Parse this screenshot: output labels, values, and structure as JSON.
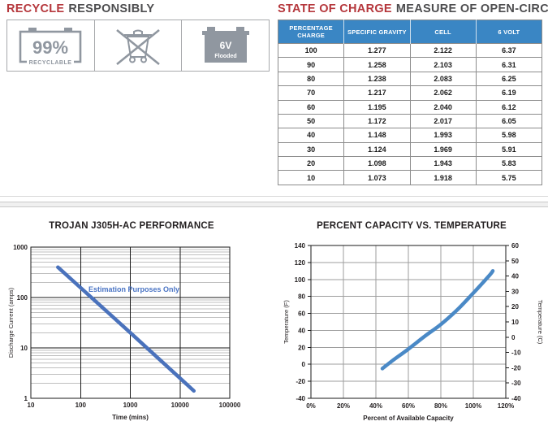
{
  "colors": {
    "accent_red": "#b5373c",
    "heading_dark": "#4d4d4f",
    "table_header_bg": "#3a86c4",
    "icon_gray": "#9097a0",
    "annotation_blue": "#4a74c4",
    "grid_gray": "#9d9d9d",
    "minor_grid_gray": "#bfbfbf",
    "frame_black": "#1a1a1a"
  },
  "recycle": {
    "heading_accent": "RECYCLE",
    "heading_rest": "RESPONSIBLY",
    "badges": {
      "recyclable_value": "99%",
      "recyclable_label": "RECYCLABLE",
      "battery_value": "6V",
      "battery_label": "Flooded"
    }
  },
  "state_of_charge": {
    "heading_accent": "STATE OF CHARGE",
    "heading_rest": "MEASURE OF OPEN-CIRCUIT VOLTAGE",
    "table": {
      "headers": [
        "PERCENTAGE CHARGE",
        "SPECIFIC GRAVITY",
        "CELL",
        "6 VOLT"
      ],
      "rows": [
        [
          "100",
          "1.277",
          "2.122",
          "6.37"
        ],
        [
          "90",
          "1.258",
          "2.103",
          "6.31"
        ],
        [
          "80",
          "1.238",
          "2.083",
          "6.25"
        ],
        [
          "70",
          "1.217",
          "2.062",
          "6.19"
        ],
        [
          "60",
          "1.195",
          "2.040",
          "6.12"
        ],
        [
          "50",
          "1.172",
          "2.017",
          "6.05"
        ],
        [
          "40",
          "1.148",
          "1.993",
          "5.98"
        ],
        [
          "30",
          "1.124",
          "1.969",
          "5.91"
        ],
        [
          "20",
          "1.098",
          "1.943",
          "5.83"
        ],
        [
          "10",
          "1.073",
          "1.918",
          "5.75"
        ]
      ]
    }
  },
  "chart_data": [
    {
      "type": "line",
      "title": "TROJAN J305H-AC PERFORMANCE",
      "xlabel": "Time (mins)",
      "ylabel": "Discharge Current (amps)",
      "xscale": "log",
      "yscale": "log",
      "xlim": [
        10,
        100000
      ],
      "ylim": [
        1,
        1000
      ],
      "xticks": [
        10,
        100,
        1000,
        10000,
        100000
      ],
      "yticks": [
        1,
        10,
        100,
        1000
      ],
      "grid": "log: minor horizontal gray, major black both axes",
      "legend": "none",
      "annotation": "Estimation Purposes Only",
      "line_color": "#4a72bc",
      "series": [
        {
          "name": "discharge-current",
          "x": [
            35,
            100,
            1000,
            10000,
            19000
          ],
          "y": [
            400,
            156,
            20,
            2.5,
            1.4
          ]
        }
      ]
    },
    {
      "type": "line",
      "title": "PERCENT CAPACITY VS. TEMPERATURE",
      "xlabel": "Percent of Available Capacity",
      "ylabel_left": "Temperature (F)",
      "ylabel_right": "Temperature (C)",
      "xlim": [
        0,
        120
      ],
      "ylim_left": [
        -40,
        140
      ],
      "ylim_right": [
        -40,
        60
      ],
      "xticks": [
        0,
        20,
        40,
        60,
        80,
        100,
        120
      ],
      "xtick_labels": [
        "0%",
        "20%",
        "40%",
        "60%",
        "80%",
        "100%",
        "120%"
      ],
      "yticks_left": [
        -40,
        -20,
        0,
        20,
        40,
        60,
        80,
        100,
        120,
        140
      ],
      "yticks_right": [
        -40,
        -30,
        -20,
        -10,
        0,
        10,
        20,
        30,
        40,
        50,
        60
      ],
      "grid": "major gray grid on",
      "legend": "none",
      "line_color": "#4a89c6",
      "series": [
        {
          "name": "capacity-vs-temperature",
          "x": [
            44,
            50,
            60,
            70,
            80,
            90,
            100,
            110,
            112
          ],
          "y": [
            -5,
            4,
            18,
            33,
            47,
            64,
            84,
            105,
            110
          ]
        }
      ]
    }
  ]
}
